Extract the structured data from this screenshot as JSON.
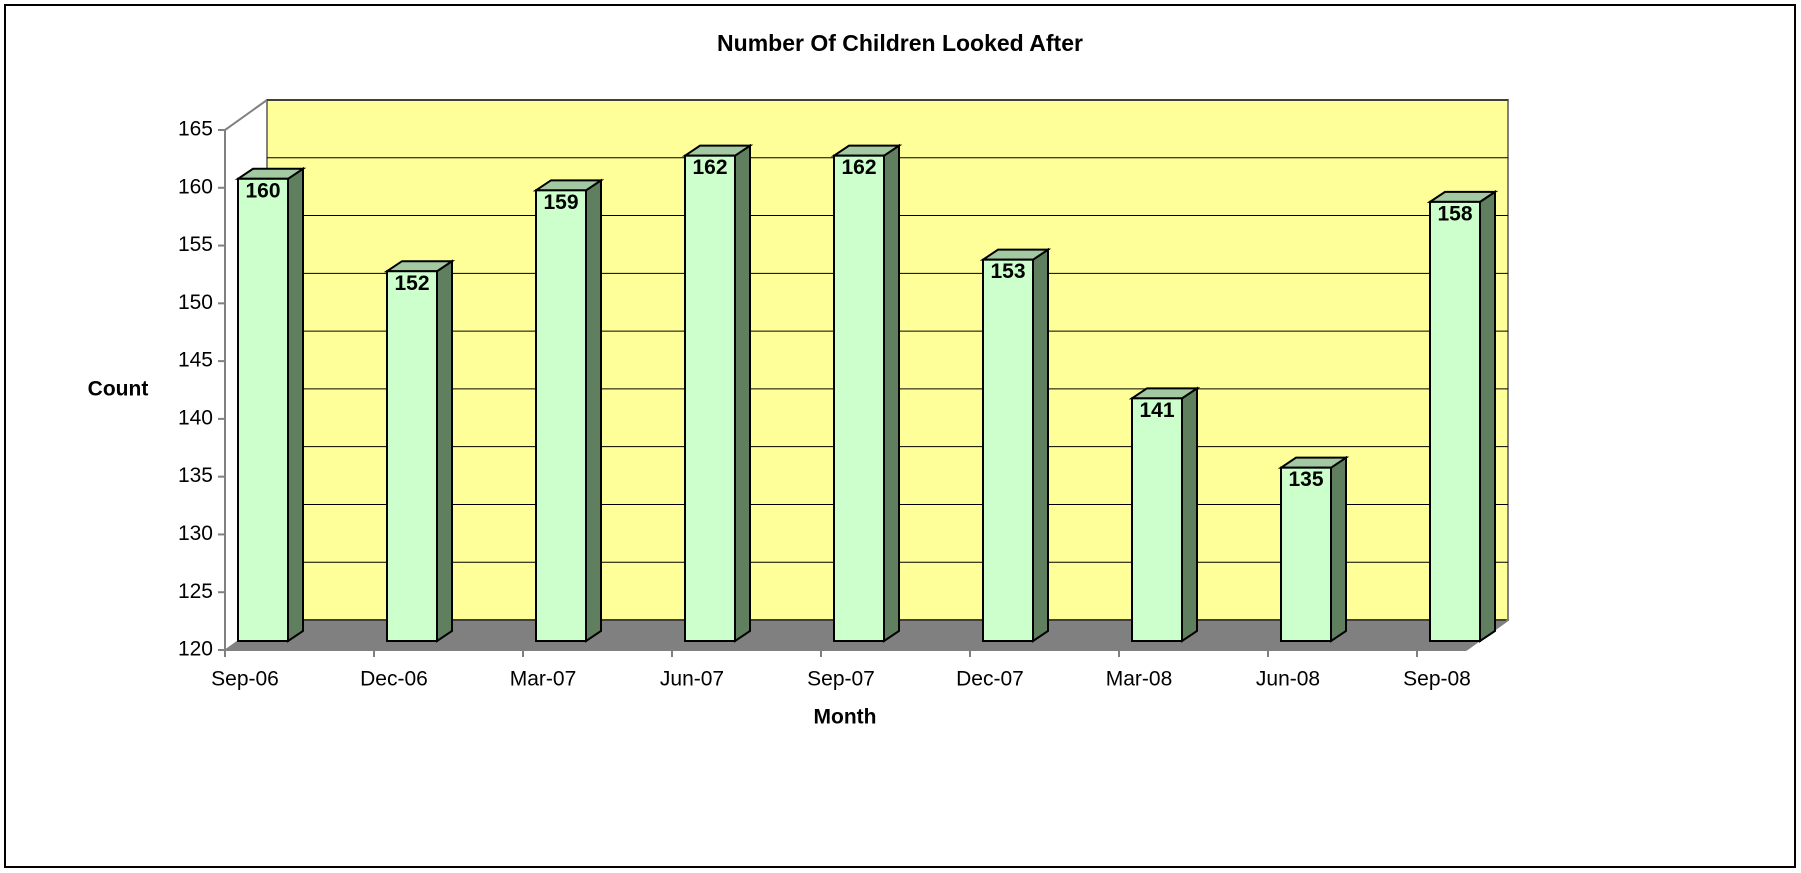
{
  "chart_data": {
    "type": "bar3d",
    "title": "Number Of Children Looked After",
    "x_label": "Month",
    "y_label": "Count",
    "categories": [
      "Sep-06",
      "Dec-06",
      "Mar-07",
      "Jun-07",
      "Sep-07",
      "Dec-07",
      "Mar-08",
      "Jun-08",
      "Sep-08"
    ],
    "values": [
      160,
      152,
      159,
      162,
      162,
      153,
      141,
      135,
      158
    ],
    "color": "#ccffcc",
    "side_color": "#5f7f5f",
    "top_color": "#a3c9a3",
    "wall_color": "#ffff99",
    "floor_color": "#808080",
    "ylim": [
      120,
      165
    ],
    "yticks": [
      120,
      125,
      130,
      135,
      140,
      145,
      150,
      155,
      160,
      165
    ],
    "grid": true
  }
}
